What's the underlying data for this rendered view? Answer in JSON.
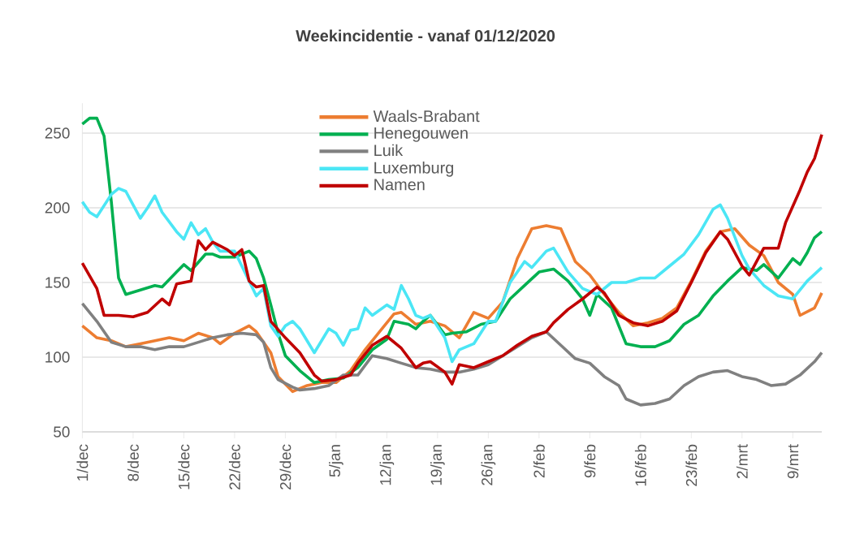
{
  "chart_data": {
    "type": "line",
    "title": "Weekincidentie - vanaf 01/12/2020",
    "xlim": [
      "2020-12-01",
      "2021-03-13"
    ],
    "ylim": [
      50,
      270
    ],
    "yticks": [
      50,
      100,
      150,
      200,
      250
    ],
    "xticks": [
      {
        "value": "2020-12-01",
        "label": "1/dec"
      },
      {
        "value": "2020-12-08",
        "label": "8/dec"
      },
      {
        "value": "2020-12-15",
        "label": "15/dec"
      },
      {
        "value": "2020-12-22",
        "label": "22/dec"
      },
      {
        "value": "2020-12-29",
        "label": "29/dec"
      },
      {
        "value": "2021-01-05",
        "label": "5/jan"
      },
      {
        "value": "2021-01-12",
        "label": "12/jan"
      },
      {
        "value": "2021-01-19",
        "label": "19/jan"
      },
      {
        "value": "2021-01-26",
        "label": "26/jan"
      },
      {
        "value": "2021-02-02",
        "label": "2/feb"
      },
      {
        "value": "2021-02-09",
        "label": "9/feb"
      },
      {
        "value": "2021-02-16",
        "label": "16/feb"
      },
      {
        "value": "2021-02-23",
        "label": "23/feb"
      },
      {
        "value": "2021-03-02",
        "label": "2/mrt"
      },
      {
        "value": "2021-03-09",
        "label": "9/mrt"
      }
    ],
    "grid": "y",
    "legend": "top",
    "marker": "none",
    "line_style": "solid",
    "series": [
      {
        "name": "Waals-Brabant",
        "color": "#ed7d31",
        "x": [
          "2020-12-01",
          "2020-12-03",
          "2020-12-05",
          "2020-12-07",
          "2020-12-09",
          "2020-12-11",
          "2020-12-13",
          "2020-12-15",
          "2020-12-17",
          "2020-12-19",
          "2020-12-20",
          "2020-12-22",
          "2020-12-24",
          "2020-12-25",
          "2020-12-27",
          "2020-12-28",
          "2020-12-30",
          "2021-01-01",
          "2021-01-03",
          "2021-01-05",
          "2021-01-07",
          "2021-01-09",
          "2021-01-11",
          "2021-01-13",
          "2021-01-14",
          "2021-01-16",
          "2021-01-18",
          "2021-01-20",
          "2021-01-22",
          "2021-01-24",
          "2021-01-26",
          "2021-01-28",
          "2021-01-30",
          "2021-02-01",
          "2021-02-03",
          "2021-02-05",
          "2021-02-07",
          "2021-02-09",
          "2021-02-11",
          "2021-02-13",
          "2021-02-15",
          "2021-02-17",
          "2021-02-19",
          "2021-02-21",
          "2021-02-23",
          "2021-02-25",
          "2021-02-27",
          "2021-03-01",
          "2021-03-03",
          "2021-03-05",
          "2021-03-07",
          "2021-03-09",
          "2021-03-10",
          "2021-03-12",
          "2021-03-13"
        ],
        "values": [
          121,
          113,
          111,
          107,
          109,
          111,
          113,
          111,
          116,
          113,
          109,
          116,
          121,
          117,
          103,
          87,
          77,
          81,
          83,
          83,
          91,
          105,
          117,
          129,
          130,
          122,
          124,
          121,
          113,
          130,
          126,
          137,
          166,
          186,
          188,
          186,
          164,
          155,
          142,
          130,
          121,
          123,
          126,
          133,
          151,
          171,
          184,
          186,
          175,
          168,
          150,
          142,
          128,
          133,
          143
        ]
      },
      {
        "name": "Henegouwen",
        "color": "#00b050",
        "x": [
          "2020-12-01",
          "2020-12-02",
          "2020-12-03",
          "2020-12-04",
          "2020-12-05",
          "2020-12-06",
          "2020-12-07",
          "2020-12-09",
          "2020-12-11",
          "2020-12-12",
          "2020-12-14",
          "2020-12-15",
          "2020-12-16",
          "2020-12-18",
          "2020-12-19",
          "2020-12-20",
          "2020-12-22",
          "2020-12-24",
          "2020-12-25",
          "2020-12-26",
          "2020-12-27",
          "2020-12-28",
          "2020-12-29",
          "2020-12-31",
          "2021-01-02",
          "2021-01-04",
          "2021-01-06",
          "2021-01-08",
          "2021-01-10",
          "2021-01-12",
          "2021-01-13",
          "2021-01-15",
          "2021-01-16",
          "2021-01-17",
          "2021-01-18",
          "2021-01-20",
          "2021-01-21",
          "2021-01-23",
          "2021-01-25",
          "2021-01-27",
          "2021-01-29",
          "2021-01-31",
          "2021-02-02",
          "2021-02-04",
          "2021-02-06",
          "2021-02-08",
          "2021-02-09",
          "2021-02-10",
          "2021-02-12",
          "2021-02-14",
          "2021-02-16",
          "2021-02-18",
          "2021-02-20",
          "2021-02-22",
          "2021-02-24",
          "2021-02-26",
          "2021-02-28",
          "2021-03-02",
          "2021-03-04",
          "2021-03-05",
          "2021-03-07",
          "2021-03-09",
          "2021-03-10",
          "2021-03-11",
          "2021-03-12",
          "2021-03-13"
        ],
        "values": [
          256,
          260,
          260,
          248,
          204,
          153,
          142,
          145,
          148,
          147,
          157,
          162,
          158,
          169,
          169,
          167,
          167,
          171,
          166,
          153,
          135,
          116,
          101,
          91,
          83,
          85,
          86,
          93,
          105,
          112,
          124,
          122,
          119,
          124,
          128,
          115,
          116,
          117,
          122,
          124,
          139,
          148,
          157,
          159,
          151,
          139,
          128,
          142,
          133,
          109,
          107,
          107,
          111,
          122,
          128,
          141,
          151,
          160,
          158,
          162,
          153,
          166,
          162,
          170,
          180,
          184
        ]
      },
      {
        "name": "Luik",
        "color": "#808080",
        "x": [
          "2020-12-01",
          "2020-12-03",
          "2020-12-05",
          "2020-12-07",
          "2020-12-09",
          "2020-12-11",
          "2020-12-13",
          "2020-12-15",
          "2020-12-17",
          "2020-12-19",
          "2020-12-21",
          "2020-12-23",
          "2020-12-25",
          "2020-12-26",
          "2020-12-27",
          "2020-12-28",
          "2020-12-30",
          "2020-12-31",
          "2021-01-02",
          "2021-01-04",
          "2021-01-06",
          "2021-01-08",
          "2021-01-10",
          "2021-01-12",
          "2021-01-14",
          "2021-01-16",
          "2021-01-18",
          "2021-01-20",
          "2021-01-22",
          "2021-01-24",
          "2021-01-26",
          "2021-01-28",
          "2021-01-30",
          "2021-02-01",
          "2021-02-03",
          "2021-02-05",
          "2021-02-07",
          "2021-02-09",
          "2021-02-11",
          "2021-02-13",
          "2021-02-14",
          "2021-02-16",
          "2021-02-18",
          "2021-02-20",
          "2021-02-22",
          "2021-02-24",
          "2021-02-26",
          "2021-02-28",
          "2021-03-02",
          "2021-03-04",
          "2021-03-06",
          "2021-03-08",
          "2021-03-10",
          "2021-03-12",
          "2021-03-13"
        ],
        "values": [
          136,
          124,
          110,
          107,
          107,
          105,
          107,
          107,
          110,
          113,
          115,
          116,
          115,
          110,
          93,
          85,
          80,
          78,
          79,
          81,
          88,
          88,
          101,
          99,
          96,
          93,
          92,
          90,
          90,
          92,
          95,
          101,
          107,
          113,
          117,
          108,
          99,
          96,
          87,
          81,
          72,
          68,
          69,
          72,
          81,
          87,
          90,
          91,
          87,
          85,
          81,
          82,
          88,
          97,
          103
        ]
      },
      {
        "name": "Luxemburg",
        "color": "#4be6f5",
        "x": [
          "2020-12-01",
          "2020-12-02",
          "2020-12-03",
          "2020-12-05",
          "2020-12-06",
          "2020-12-07",
          "2020-12-08",
          "2020-12-09",
          "2020-12-10",
          "2020-12-11",
          "2020-12-12",
          "2020-12-14",
          "2020-12-15",
          "2020-12-16",
          "2020-12-17",
          "2020-12-18",
          "2020-12-19",
          "2020-12-20",
          "2020-12-22",
          "2020-12-23",
          "2020-12-24",
          "2020-12-25",
          "2020-12-26",
          "2020-12-27",
          "2020-12-28",
          "2020-12-29",
          "2020-12-30",
          "2020-12-31",
          "2021-01-02",
          "2021-01-04",
          "2021-01-05",
          "2021-01-06",
          "2021-01-07",
          "2021-01-08",
          "2021-01-09",
          "2021-01-10",
          "2021-01-12",
          "2021-01-13",
          "2021-01-14",
          "2021-01-15",
          "2021-01-16",
          "2021-01-17",
          "2021-01-18",
          "2021-01-20",
          "2021-01-21",
          "2021-01-22",
          "2021-01-24",
          "2021-01-26",
          "2021-01-27",
          "2021-01-29",
          "2021-01-31",
          "2021-02-01",
          "2021-02-03",
          "2021-02-04",
          "2021-02-06",
          "2021-02-08",
          "2021-02-10",
          "2021-02-12",
          "2021-02-14",
          "2021-02-16",
          "2021-02-18",
          "2021-02-20",
          "2021-02-22",
          "2021-02-24",
          "2021-02-26",
          "2021-02-27",
          "2021-02-28",
          "2021-03-02",
          "2021-03-03",
          "2021-03-05",
          "2021-03-07",
          "2021-03-09",
          "2021-03-11",
          "2021-03-13"
        ],
        "values": [
          204,
          197,
          194,
          209,
          213,
          211,
          202,
          193,
          200,
          208,
          197,
          184,
          179,
          190,
          182,
          186,
          177,
          171,
          171,
          161,
          151,
          141,
          146,
          121,
          114,
          121,
          124,
          119,
          103,
          119,
          116,
          108,
          118,
          119,
          133,
          128,
          135,
          132,
          148,
          139,
          128,
          126,
          128,
          113,
          97,
          105,
          109,
          124,
          124,
          150,
          164,
          160,
          171,
          173,
          157,
          146,
          142,
          150,
          150,
          153,
          153,
          161,
          169,
          182,
          199,
          202,
          193,
          168,
          159,
          148,
          141,
          139,
          151,
          160
        ]
      },
      {
        "name": "Namen",
        "color": "#c00000",
        "x": [
          "2020-12-01",
          "2020-12-03",
          "2020-12-04",
          "2020-12-06",
          "2020-12-08",
          "2020-12-10",
          "2020-12-12",
          "2020-12-13",
          "2020-12-14",
          "2020-12-16",
          "2020-12-17",
          "2020-12-18",
          "2020-12-19",
          "2020-12-21",
          "2020-12-22",
          "2020-12-23",
          "2020-12-24",
          "2020-12-25",
          "2020-12-26",
          "2020-12-27",
          "2020-12-29",
          "2020-12-31",
          "2021-01-02",
          "2021-01-03",
          "2021-01-05",
          "2021-01-07",
          "2021-01-08",
          "2021-01-10",
          "2021-01-12",
          "2021-01-14",
          "2021-01-16",
          "2021-01-17",
          "2021-01-18",
          "2021-01-20",
          "2021-01-21",
          "2021-01-22",
          "2021-01-24",
          "2021-01-26",
          "2021-01-28",
          "2021-01-30",
          "2021-02-01",
          "2021-02-03",
          "2021-02-04",
          "2021-02-06",
          "2021-02-08",
          "2021-02-10",
          "2021-02-11",
          "2021-02-13",
          "2021-02-15",
          "2021-02-17",
          "2021-02-19",
          "2021-02-21",
          "2021-02-23",
          "2021-02-25",
          "2021-02-27",
          "2021-02-28",
          "2021-03-02",
          "2021-03-03",
          "2021-03-05",
          "2021-03-07",
          "2021-03-08",
          "2021-03-10",
          "2021-03-11",
          "2021-03-12",
          "2021-03-13"
        ],
        "values": [
          163,
          146,
          128,
          128,
          127,
          130,
          139,
          135,
          149,
          151,
          178,
          172,
          177,
          172,
          168,
          172,
          151,
          147,
          148,
          124,
          113,
          103,
          88,
          84,
          85,
          88,
          96,
          108,
          114,
          106,
          93,
          96,
          97,
          90,
          82,
          95,
          93,
          97,
          101,
          108,
          114,
          117,
          123,
          132,
          139,
          147,
          143,
          128,
          123,
          121,
          124,
          131,
          150,
          170,
          184,
          179,
          161,
          155,
          173,
          173,
          190,
          212,
          224,
          233,
          249
        ]
      }
    ]
  }
}
